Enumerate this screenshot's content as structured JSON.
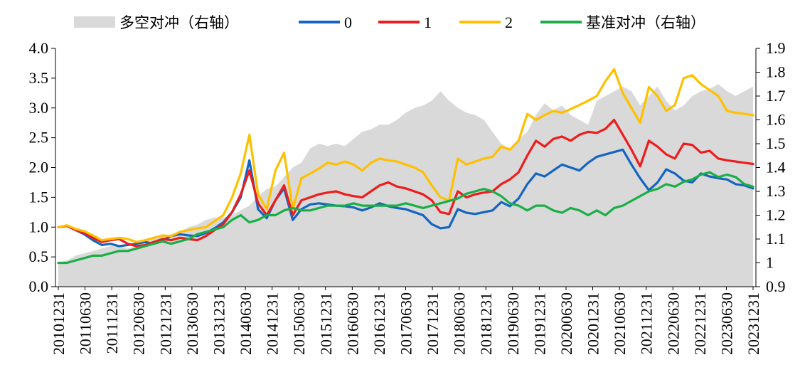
{
  "chart_data": {
    "type": "line",
    "title": "",
    "xlabel": "",
    "ylabel": "",
    "ylim": [
      0,
      4
    ],
    "ylim_right": [
      0.9,
      1.9
    ],
    "yticks_left": [
      "0.0",
      "0.5",
      "1.0",
      "1.5",
      "2.0",
      "2.5",
      "3.0",
      "3.5",
      "4.0"
    ],
    "yticks_right": [
      "0.9",
      "1",
      "1.1",
      "1.2",
      "1.3",
      "1.4",
      "1.5",
      "1.6",
      "1.7",
      "1.8",
      "1.9"
    ],
    "x_tick_labels": [
      "20101231",
      "20110630",
      "20111231",
      "20120630",
      "20121231",
      "20130630",
      "20131231",
      "20140630",
      "20141231",
      "20150630",
      "20151231",
      "20160630",
      "20161231",
      "20170630",
      "20171231",
      "20180630",
      "20181231",
      "20190630",
      "20191231",
      "20200630",
      "20201231",
      "20210630",
      "20211231",
      "20220630",
      "20221231",
      "20230630",
      "20231231"
    ],
    "legend_position": "top",
    "series": [
      {
        "name": "多空对冲（右轴）",
        "kind": "area",
        "axis": "right",
        "color": "#d9d9d9",
        "values": [
          1.0,
          1.01,
          1.03,
          1.04,
          1.05,
          1.06,
          1.07,
          1.07,
          1.06,
          1.07,
          1.09,
          1.1,
          1.11,
          1.12,
          1.13,
          1.15,
          1.16,
          1.18,
          1.19,
          1.19,
          1.2,
          1.22,
          1.24,
          1.28,
          1.31,
          1.32,
          1.36,
          1.4,
          1.42,
          1.48,
          1.5,
          1.49,
          1.5,
          1.49,
          1.52,
          1.55,
          1.56,
          1.58,
          1.58,
          1.6,
          1.63,
          1.65,
          1.66,
          1.68,
          1.72,
          1.68,
          1.65,
          1.63,
          1.62,
          1.6,
          1.55,
          1.5,
          1.48,
          1.52,
          1.55,
          1.62,
          1.67,
          1.64,
          1.66,
          1.62,
          1.6,
          1.58,
          1.68,
          1.7,
          1.72,
          1.74,
          1.72,
          1.66,
          1.7,
          1.74,
          1.68,
          1.64,
          1.66,
          1.7,
          1.72,
          1.73,
          1.75,
          1.72,
          1.7,
          1.72,
          1.74
        ]
      },
      {
        "name": "0",
        "axis": "left",
        "color": "#1565c0",
        "values": [
          1.0,
          1.02,
          0.95,
          0.88,
          0.78,
          0.7,
          0.72,
          0.68,
          0.7,
          0.72,
          0.75,
          0.72,
          0.78,
          0.85,
          0.88,
          0.86,
          0.85,
          0.9,
          0.98,
          1.08,
          1.25,
          1.5,
          2.12,
          1.3,
          1.15,
          1.45,
          1.65,
          1.12,
          1.3,
          1.38,
          1.4,
          1.38,
          1.36,
          1.35,
          1.33,
          1.28,
          1.33,
          1.4,
          1.35,
          1.32,
          1.3,
          1.25,
          1.2,
          1.05,
          0.98,
          1.0,
          1.3,
          1.24,
          1.22,
          1.25,
          1.28,
          1.42,
          1.35,
          1.48,
          1.72,
          1.9,
          1.85,
          1.95,
          2.05,
          2.0,
          1.95,
          2.08,
          2.18,
          2.22,
          2.26,
          2.3,
          2.05,
          1.82,
          1.62,
          1.75,
          1.97,
          1.9,
          1.78,
          1.75,
          1.9,
          1.85,
          1.82,
          1.8,
          1.72,
          1.7,
          1.65
        ]
      },
      {
        "name": "1",
        "axis": "left",
        "color": "#ee1c1c",
        "values": [
          1.0,
          1.02,
          0.95,
          0.9,
          0.82,
          0.75,
          0.78,
          0.8,
          0.72,
          0.68,
          0.7,
          0.75,
          0.8,
          0.78,
          0.82,
          0.8,
          0.78,
          0.85,
          0.95,
          1.05,
          1.25,
          1.55,
          1.95,
          1.4,
          1.2,
          1.45,
          1.7,
          1.2,
          1.45,
          1.5,
          1.55,
          1.58,
          1.6,
          1.55,
          1.52,
          1.5,
          1.6,
          1.7,
          1.75,
          1.68,
          1.65,
          1.6,
          1.55,
          1.45,
          1.25,
          1.22,
          1.6,
          1.5,
          1.55,
          1.58,
          1.6,
          1.72,
          1.8,
          1.92,
          2.2,
          2.45,
          2.35,
          2.48,
          2.52,
          2.45,
          2.55,
          2.6,
          2.58,
          2.65,
          2.8,
          2.55,
          2.3,
          2.02,
          2.45,
          2.35,
          2.22,
          2.15,
          2.4,
          2.38,
          2.25,
          2.28,
          2.15,
          2.12,
          2.1,
          2.08,
          2.06
        ]
      },
      {
        "name": "2",
        "axis": "left",
        "color": "#ffc000",
        "values": [
          1.0,
          1.03,
          0.97,
          0.93,
          0.86,
          0.78,
          0.8,
          0.82,
          0.8,
          0.75,
          0.78,
          0.82,
          0.86,
          0.85,
          0.92,
          0.95,
          0.98,
          1.0,
          1.1,
          1.2,
          1.5,
          1.9,
          2.55,
          1.55,
          1.3,
          1.95,
          2.25,
          1.3,
          1.82,
          1.9,
          1.98,
          2.08,
          2.05,
          2.1,
          2.05,
          1.95,
          2.08,
          2.15,
          2.12,
          2.1,
          2.05,
          2.0,
          1.92,
          1.7,
          1.5,
          1.45,
          2.15,
          2.05,
          2.1,
          2.15,
          2.18,
          2.35,
          2.3,
          2.45,
          2.9,
          2.8,
          2.88,
          2.95,
          2.92,
          2.98,
          3.05,
          3.12,
          3.2,
          3.45,
          3.65,
          3.25,
          3.0,
          2.75,
          3.35,
          3.2,
          2.95,
          3.05,
          3.5,
          3.55,
          3.4,
          3.3,
          3.2,
          2.95,
          2.92,
          2.9,
          2.88
        ]
      },
      {
        "name": "基准对冲（右轴）",
        "axis": "right",
        "color": "#1aae48",
        "values": [
          1.0,
          1.0,
          1.01,
          1.02,
          1.03,
          1.03,
          1.04,
          1.05,
          1.05,
          1.06,
          1.07,
          1.08,
          1.09,
          1.08,
          1.09,
          1.1,
          1.12,
          1.13,
          1.14,
          1.15,
          1.18,
          1.2,
          1.17,
          1.18,
          1.2,
          1.2,
          1.22,
          1.23,
          1.22,
          1.22,
          1.23,
          1.24,
          1.24,
          1.24,
          1.25,
          1.24,
          1.24,
          1.24,
          1.24,
          1.24,
          1.25,
          1.24,
          1.23,
          1.24,
          1.25,
          1.26,
          1.27,
          1.29,
          1.3,
          1.31,
          1.3,
          1.28,
          1.25,
          1.24,
          1.22,
          1.24,
          1.24,
          1.22,
          1.21,
          1.23,
          1.22,
          1.2,
          1.22,
          1.2,
          1.23,
          1.24,
          1.26,
          1.28,
          1.3,
          1.31,
          1.33,
          1.32,
          1.34,
          1.35,
          1.37,
          1.38,
          1.36,
          1.37,
          1.36,
          1.33,
          1.32
        ]
      }
    ]
  }
}
